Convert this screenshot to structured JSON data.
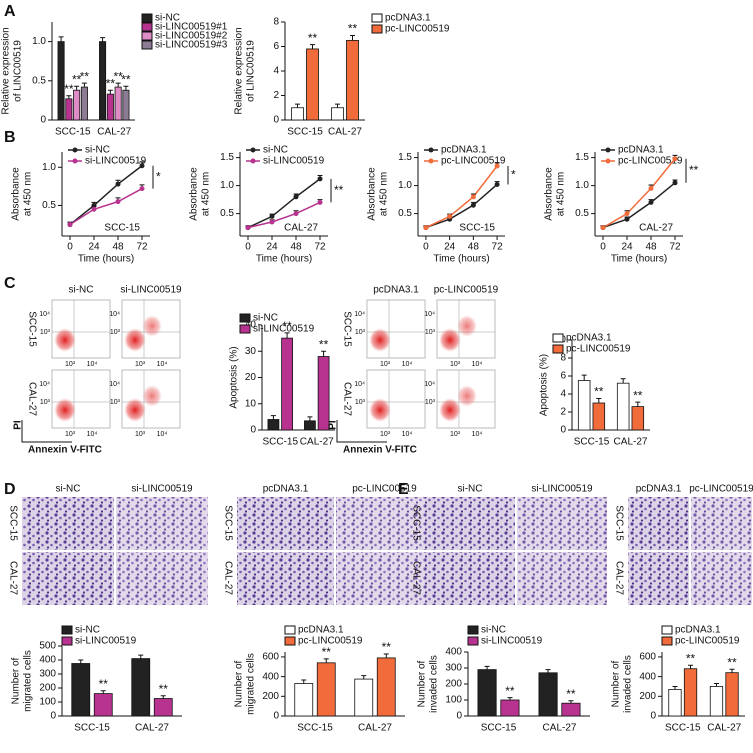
{
  "panel_letters": [
    "A",
    "B",
    "C",
    "D",
    "E"
  ],
  "chart_data": [
    {
      "type": "bar",
      "ylabel": [
        "Relative expression",
        "of LINC00519"
      ],
      "categories": [
        "SCC-15",
        "CAL-27"
      ],
      "ylim": [
        0,
        1.25
      ],
      "yticks": [
        0,
        0.5,
        {
          "value": 1,
          "label": "1.0"
        }
      ],
      "series": [
        {
          "name": "si-NC",
          "color": "#222222",
          "values": [
            1.0,
            1.0
          ],
          "errors": [
            0.06,
            0.05
          ]
        },
        {
          "name": "si-LINC00519#1",
          "color": "#b8338f",
          "values": [
            0.27,
            0.33
          ],
          "errors": [
            0.04,
            0.05
          ],
          "labels": [
            "**",
            "**"
          ]
        },
        {
          "name": "si-LINC00519#2",
          "color": "#dd8cc6",
          "values": [
            0.38,
            0.42
          ],
          "errors": [
            0.05,
            0.05
          ],
          "labels": [
            "**",
            "**"
          ]
        },
        {
          "name": "si-LINC00519#3",
          "color": "#8c7b93",
          "values": [
            0.42,
            0.38
          ],
          "errors": [
            0.05,
            0.05
          ],
          "labels": [
            "**",
            "**"
          ]
        }
      ]
    },
    {
      "type": "bar",
      "ylabel": [
        "Relative expression",
        "of LINC00519"
      ],
      "categories": [
        "SCC-15",
        "CAL-27"
      ],
      "ylim": [
        0,
        8
      ],
      "yticks": [
        0,
        2,
        4,
        6,
        8
      ],
      "series": [
        {
          "name": "pcDNA3.1",
          "color": "#ffffff",
          "values": [
            1.0,
            1.0
          ],
          "errors": [
            0.3,
            0.3
          ]
        },
        {
          "name": "pc-LINC00519",
          "color": "#f26b3a",
          "values": [
            5.8,
            6.5
          ],
          "errors": [
            0.35,
            0.4
          ],
          "labels": [
            "**",
            "**"
          ]
        }
      ]
    },
    {
      "type": "line",
      "ylabel": [
        "Absorbance",
        "at 450 nm"
      ],
      "xlabel": "Time (hours)",
      "cell_line": "SCC-15",
      "annotation": "*",
      "x": [
        0,
        24,
        48,
        72
      ],
      "xlim": [
        -8,
        80
      ],
      "xticks": [
        0,
        24,
        48,
        72
      ],
      "ylim": [
        0.1,
        1.2
      ],
      "yticks": [
        0.5,
        {
          "value": 1,
          "label": "1.0"
        }
      ],
      "series": [
        {
          "name": "si-NC",
          "color": "#222222",
          "values": [
            0.25,
            0.5,
            0.78,
            1.02
          ],
          "errors": [
            0.03,
            0.04,
            0.05,
            0.05
          ]
        },
        {
          "name": "si-LINC00519",
          "color": "#b8338f",
          "values": [
            0.25,
            0.45,
            0.55,
            0.72
          ],
          "errors": [
            0.03,
            0.04,
            0.05,
            0.05
          ]
        }
      ]
    },
    {
      "type": "line",
      "ylabel": [
        "Absorbance",
        "at 450 nm"
      ],
      "xlabel": "Time (hours)",
      "cell_line": "CAL-27",
      "annotation": "**",
      "x": [
        0,
        24,
        48,
        72
      ],
      "xlim": [
        -8,
        80
      ],
      "xticks": [
        0,
        24,
        48,
        72
      ],
      "ylim": [
        0.1,
        1.6
      ],
      "yticks": [
        0.5,
        {
          "value": 1,
          "label": "1.0"
        },
        1.5
      ],
      "series": [
        {
          "name": "si-NC",
          "color": "#222222",
          "values": [
            0.25,
            0.45,
            0.8,
            1.12
          ],
          "errors": [
            0.03,
            0.04,
            0.05,
            0.06
          ]
        },
        {
          "name": "si-LINC00519",
          "color": "#b8338f",
          "values": [
            0.25,
            0.35,
            0.5,
            0.7
          ],
          "errors": [
            0.03,
            0.04,
            0.05,
            0.05
          ]
        }
      ]
    },
    {
      "type": "line",
      "ylabel": [
        "Absorbance",
        "at 450 nm"
      ],
      "xlabel": "Time (hours)",
      "cell_line": "SCC-15",
      "annotation": "*",
      "x": [
        0,
        24,
        48,
        72
      ],
      "xlim": [
        -8,
        80
      ],
      "xticks": [
        0,
        24,
        48,
        72
      ],
      "ylim": [
        0.1,
        1.6
      ],
      "yticks": [
        0.5,
        {
          "value": 1,
          "label": "1.0"
        },
        1.5
      ],
      "series": [
        {
          "name": "pcDNA3.1",
          "color": "#222222",
          "values": [
            0.25,
            0.4,
            0.65,
            1.02
          ],
          "errors": [
            0.03,
            0.04,
            0.05,
            0.05
          ]
        },
        {
          "name": "pc-LINC00519",
          "color": "#f26b3a",
          "values": [
            0.25,
            0.45,
            0.8,
            1.35
          ],
          "errors": [
            0.03,
            0.04,
            0.05,
            0.06
          ]
        }
      ]
    },
    {
      "type": "line",
      "ylabel": [
        "Absorbance",
        "at 450 nm"
      ],
      "xlabel": "Time (hours)",
      "cell_line": "CAL-27",
      "annotation": "**",
      "x": [
        0,
        24,
        48,
        72
      ],
      "xlim": [
        -8,
        80
      ],
      "xticks": [
        0,
        24,
        48,
        72
      ],
      "ylim": [
        0.1,
        1.6
      ],
      "yticks": [
        0.5,
        {
          "value": 1,
          "label": "1.0"
        },
        1.5
      ],
      "series": [
        {
          "name": "pcDNA3.1",
          "color": "#222222",
          "values": [
            0.25,
            0.4,
            0.7,
            1.05
          ],
          "errors": [
            0.03,
            0.04,
            0.05,
            0.05
          ]
        },
        {
          "name": "pc-LINC00519",
          "color": "#f26b3a",
          "values": [
            0.25,
            0.5,
            0.95,
            1.48
          ],
          "errors": [
            0.03,
            0.05,
            0.06,
            0.06
          ]
        }
      ]
    },
    {
      "type": "bar",
      "ylabel": [
        "Apoptosis (%)"
      ],
      "categories": [
        "SCC-15",
        "CAL-27"
      ],
      "ylim": [
        0,
        40
      ],
      "yticks": [
        0,
        10,
        20,
        30,
        40
      ],
      "series": [
        {
          "name": "si-NC",
          "color": "#222222",
          "values": [
            4,
            3.5
          ],
          "errors": [
            1.5,
            1.5
          ]
        },
        {
          "name": "si-LINC00519",
          "color": "#b8338f",
          "values": [
            35,
            28
          ],
          "errors": [
            2,
            2
          ],
          "labels": [
            "**",
            "**"
          ]
        }
      ]
    },
    {
      "type": "bar",
      "ylabel": [
        "Apoptosis (%)"
      ],
      "categories": [
        "SCC-15",
        "CAL-27"
      ],
      "ylim": [
        0,
        10
      ],
      "yticks": [
        0,
        2,
        4,
        6,
        8,
        10
      ],
      "series": [
        {
          "name": "pcDNA3.1",
          "color": "#ffffff",
          "values": [
            5.5,
            5.2
          ],
          "errors": [
            0.6,
            0.5
          ]
        },
        {
          "name": "pc-LINC00519",
          "color": "#f26b3a",
          "values": [
            3,
            2.6
          ],
          "errors": [
            0.5,
            0.5
          ],
          "labels": [
            "**",
            "**"
          ]
        }
      ]
    },
    {
      "type": "bar",
      "ylabel": [
        "Number of",
        "migrated cells"
      ],
      "categories": [
        "SCC-15",
        "CAL-27"
      ],
      "ylim": [
        0,
        500
      ],
      "yticks": [
        0,
        100,
        200,
        300,
        400,
        500
      ],
      "series": [
        {
          "name": "si-NC",
          "color": "#222222",
          "values": [
            375,
            410
          ],
          "errors": [
            25,
            25
          ]
        },
        {
          "name": "si-LINC00519",
          "color": "#b8338f",
          "values": [
            160,
            125
          ],
          "errors": [
            20,
            20
          ],
          "labels": [
            "**",
            "**"
          ]
        }
      ]
    },
    {
      "type": "bar",
      "ylabel": [
        "Number of",
        "migrated cells"
      ],
      "categories": [
        "SCC-15",
        "CAL-27"
      ],
      "ylim": [
        0,
        650
      ],
      "yticks": [
        0,
        200,
        400,
        600
      ],
      "series": [
        {
          "name": "pcDNA3.1",
          "color": "#ffffff",
          "values": [
            330,
            375
          ],
          "errors": [
            35,
            35
          ]
        },
        {
          "name": "pc-LINC00519",
          "color": "#f26b3a",
          "values": [
            540,
            590
          ],
          "errors": [
            40,
            40
          ],
          "labels": [
            "**",
            "**"
          ]
        }
      ]
    },
    {
      "type": "bar",
      "ylabel": [
        "Number of",
        "invaded cells"
      ],
      "categories": [
        "SCC-15",
        "CAL-27"
      ],
      "ylim": [
        0,
        400
      ],
      "yticks": [
        0,
        100,
        200,
        300,
        400
      ],
      "series": [
        {
          "name": "si-NC",
          "color": "#222222",
          "values": [
            290,
            270
          ],
          "errors": [
            20,
            20
          ]
        },
        {
          "name": "si-LINC00519",
          "color": "#b8338f",
          "values": [
            100,
            80
          ],
          "errors": [
            15,
            15
          ],
          "labels": [
            "**",
            "**"
          ]
        }
      ]
    },
    {
      "type": "bar",
      "ylabel": [
        "Number of",
        "invaded cells"
      ],
      "categories": [
        "SCC-15",
        "CAL-27"
      ],
      "ylim": [
        0,
        650
      ],
      "yticks": [
        0,
        200,
        400,
        600
      ],
      "series": [
        {
          "name": "pcDNA3.1",
          "color": "#ffffff",
          "values": [
            270,
            300
          ],
          "errors": [
            30,
            30
          ]
        },
        {
          "name": "pc-LINC00519",
          "color": "#f26b3a",
          "values": [
            480,
            440
          ],
          "errors": [
            35,
            35
          ],
          "labels": [
            "**",
            "**"
          ]
        }
      ]
    }
  ],
  "flow_cytometry": [
    {
      "column_labels": [
        "si-NC",
        "si-LINC00519"
      ],
      "row_labels": [
        "SCC-15",
        "CAL-27"
      ],
      "y_axis_label": "PI",
      "x_axis_label": "Annexin V-FITC"
    },
    {
      "column_labels": [
        "pcDNA3.1",
        "pc-LINC00519"
      ],
      "row_labels": [
        "SCC-15",
        "CAL-27"
      ],
      "y_axis_label": "PI",
      "x_axis_label": "Annexin V-FITC"
    }
  ],
  "flow_tick_labels": [
    "10³",
    "10⁴"
  ],
  "micrographs": [
    {
      "column_labels": [
        "si-NC",
        "si-LINC00519"
      ],
      "row_labels": [
        "SCC-15",
        "CAL-27"
      ]
    },
    {
      "column_labels": [
        "pcDNA3.1",
        "pc-LINC00519"
      ],
      "row_labels": [
        "SCC-15",
        "CAL-27"
      ]
    },
    {
      "column_labels": [
        "si-NC",
        "si-LINC00519"
      ],
      "row_labels": [
        "SCC-15",
        "CAL-27"
      ]
    },
    {
      "column_labels": [
        "pcDNA3.1",
        "pc-LINC00519"
      ],
      "row_labels": [
        "SCC-15",
        "CAL-27"
      ]
    }
  ]
}
